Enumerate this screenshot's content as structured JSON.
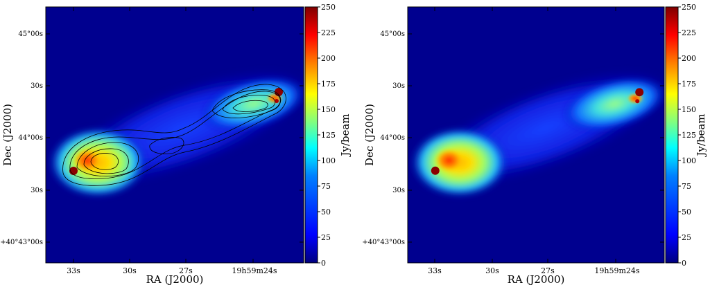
{
  "panels": [
    {
      "id": "left",
      "contours": true,
      "ra_ticks": [
        "33s",
        "30s",
        "27s",
        "19h59m24s"
      ],
      "dec_ticks": [
        "45°00s",
        "30s",
        "44°00s",
        "30s",
        "+40°43°00s"
      ],
      "xlabel": "RA (J2000)",
      "ylabel": "Dec (J2000)"
    },
    {
      "id": "right",
      "contours": false,
      "ra_ticks": [
        "33s",
        "30s",
        "27s",
        "19h59m24s"
      ],
      "dec_ticks": [
        "45°00s",
        "30s",
        "44°00s",
        "30s",
        "+40°43°00s"
      ],
      "xlabel": "RA (J2000)",
      "ylabel": "Dec (J2000)"
    }
  ],
  "colorbar": {
    "label": "Jy/beam",
    "min": 0,
    "max": 250,
    "ticks": [
      "250",
      "225",
      "200",
      "175",
      "150",
      "125",
      "100",
      "75",
      "50",
      "25",
      "0"
    ]
  },
  "colors": {
    "background": "#00008f",
    "colormap": [
      "#00007f",
      "#0000ff",
      "#0080ff",
      "#00ffff",
      "#80ff80",
      "#ffff00",
      "#ff8000",
      "#ff0000",
      "#7f0000"
    ]
  }
}
